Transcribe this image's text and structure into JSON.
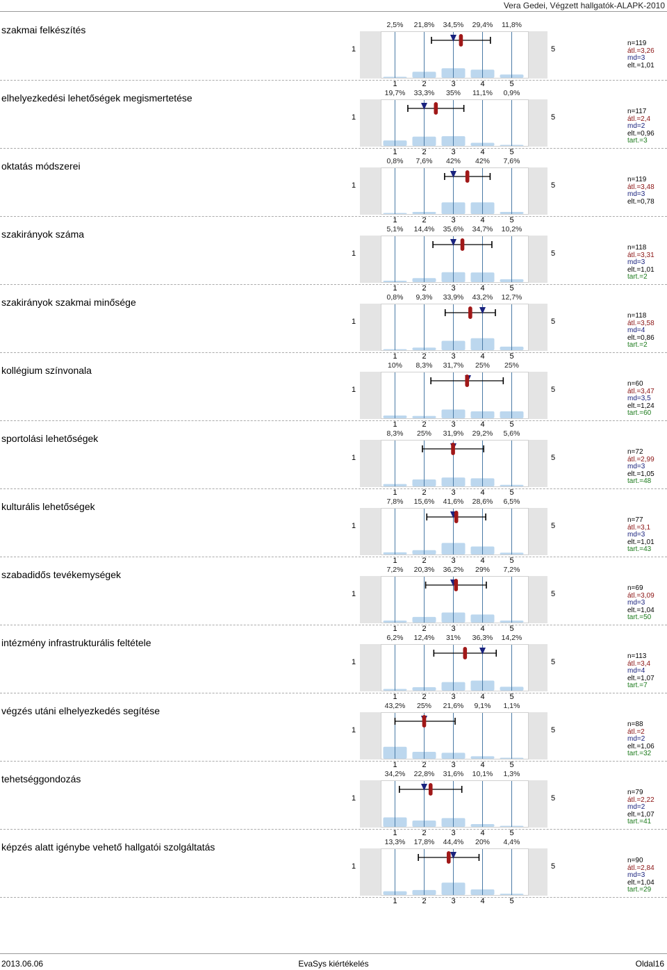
{
  "header": {
    "title": "Vera Gedei, Végzett hallgatók-ALAPK-2010"
  },
  "scale": {
    "low": "1",
    "high": "5",
    "ticks": [
      "1",
      "2",
      "3",
      "4",
      "5"
    ]
  },
  "footer": {
    "date": "2013.06.06",
    "center": "EvaSys kiértékelés",
    "page": "Oldal16"
  },
  "colors": {
    "bar": "#bcd7ee",
    "avg": "#a01818",
    "median": "#1a237e",
    "grid": "#4a7aa5",
    "sidebox": "#e4e4e4"
  },
  "chart_data": [
    {
      "type": "bar",
      "title": "szakmai felkészítés",
      "categories": [
        "1",
        "2",
        "3",
        "4",
        "5"
      ],
      "values": [
        2.5,
        21.8,
        34.5,
        29.4,
        11.8
      ],
      "labels": [
        "2,5%",
        "21,8%",
        "34,5%",
        "29,4%",
        "11,8%"
      ],
      "mean": 3.26,
      "median": 3,
      "sd": 1.01,
      "stats": {
        "n": "n=119",
        "avg": "átl.=3,26",
        "md": "md=3",
        "dev": "elt.=1,01",
        "abst": ""
      }
    },
    {
      "type": "bar",
      "title": "elhelyezkedési lehetőségek megismertetése",
      "categories": [
        "1",
        "2",
        "3",
        "4",
        "5"
      ],
      "values": [
        19.7,
        33.3,
        35,
        11.1,
        0.9
      ],
      "labels": [
        "19,7%",
        "33,3%",
        "35%",
        "11,1%",
        "0,9%"
      ],
      "mean": 2.4,
      "median": 2,
      "sd": 0.96,
      "stats": {
        "n": "n=117",
        "avg": "átl.=2,4",
        "md": "md=2",
        "dev": "elt.=0,96",
        "abst": "tart.=3"
      }
    },
    {
      "type": "bar",
      "title": "oktatás módszerei",
      "categories": [
        "1",
        "2",
        "3",
        "4",
        "5"
      ],
      "values": [
        0.8,
        7.6,
        42,
        42,
        7.6
      ],
      "labels": [
        "0,8%",
        "7,6%",
        "42%",
        "42%",
        "7,6%"
      ],
      "mean": 3.48,
      "median": 3,
      "sd": 0.78,
      "stats": {
        "n": "n=119",
        "avg": "átl.=3,48",
        "md": "md=3",
        "dev": "elt.=0,78",
        "abst": ""
      }
    },
    {
      "type": "bar",
      "title": "szakirányok száma",
      "categories": [
        "1",
        "2",
        "3",
        "4",
        "5"
      ],
      "values": [
        5.1,
        14.4,
        35.6,
        34.7,
        10.2
      ],
      "labels": [
        "5,1%",
        "14,4%",
        "35,6%",
        "34,7%",
        "10,2%"
      ],
      "mean": 3.31,
      "median": 3,
      "sd": 1.01,
      "stats": {
        "n": "n=118",
        "avg": "átl.=3,31",
        "md": "md=3",
        "dev": "elt.=1,01",
        "abst": "tart.=2"
      }
    },
    {
      "type": "bar",
      "title": "szakirányok szakmai minősége",
      "categories": [
        "1",
        "2",
        "3",
        "4",
        "5"
      ],
      "values": [
        0.8,
        9.3,
        33.9,
        43.2,
        12.7
      ],
      "labels": [
        "0,8%",
        "9,3%",
        "33,9%",
        "43,2%",
        "12,7%"
      ],
      "mean": 3.58,
      "median": 4,
      "sd": 0.86,
      "stats": {
        "n": "n=118",
        "avg": "átl.=3,58",
        "md": "md=4",
        "dev": "elt.=0,86",
        "abst": "tart.=2"
      }
    },
    {
      "type": "bar",
      "title": "kollégium színvonala",
      "categories": [
        "1",
        "2",
        "3",
        "4",
        "5"
      ],
      "values": [
        10,
        8.3,
        31.7,
        25,
        25
      ],
      "labels": [
        "10%",
        "8,3%",
        "31,7%",
        "25%",
        "25%"
      ],
      "mean": 3.47,
      "median": 3.5,
      "sd": 1.24,
      "stats": {
        "n": "n=60",
        "avg": "átl.=3,47",
        "md": "md=3,5",
        "dev": "elt.=1,24",
        "abst": "tart.=60"
      }
    },
    {
      "type": "bar",
      "title": "sportolási lehetőségek",
      "categories": [
        "1",
        "2",
        "3",
        "4",
        "5"
      ],
      "values": [
        8.3,
        25,
        31.9,
        29.2,
        5.6
      ],
      "labels": [
        "8,3%",
        "25%",
        "31,9%",
        "29,2%",
        "5,6%"
      ],
      "mean": 2.99,
      "median": 3,
      "sd": 1.05,
      "stats": {
        "n": "n=72",
        "avg": "átl.=2,99",
        "md": "md=3",
        "dev": "elt.=1,05",
        "abst": "tart.=48"
      }
    },
    {
      "type": "bar",
      "title": "kulturális lehetőségek",
      "categories": [
        "1",
        "2",
        "3",
        "4",
        "5"
      ],
      "values": [
        7.8,
        15.6,
        41.6,
        28.6,
        6.5
      ],
      "labels": [
        "7,8%",
        "15,6%",
        "41,6%",
        "28,6%",
        "6,5%"
      ],
      "mean": 3.1,
      "median": 3,
      "sd": 1.01,
      "stats": {
        "n": "n=77",
        "avg": "átl.=3,1",
        "md": "md=3",
        "dev": "elt.=1,01",
        "abst": "tart.=43"
      }
    },
    {
      "type": "bar",
      "title": "szabadidős tevékemységek",
      "categories": [
        "1",
        "2",
        "3",
        "4",
        "5"
      ],
      "values": [
        7.2,
        20.3,
        36.2,
        29,
        7.2
      ],
      "labels": [
        "7,2%",
        "20,3%",
        "36,2%",
        "29%",
        "7,2%"
      ],
      "mean": 3.09,
      "median": 3,
      "sd": 1.04,
      "stats": {
        "n": "n=69",
        "avg": "átl.=3,09",
        "md": "md=3",
        "dev": "elt.=1,04",
        "abst": "tart.=50"
      }
    },
    {
      "type": "bar",
      "title": "intézmény infrastrukturális feltétele",
      "categories": [
        "1",
        "2",
        "3",
        "4",
        "5"
      ],
      "values": [
        6.2,
        12.4,
        31,
        36.3,
        14.2
      ],
      "labels": [
        "6,2%",
        "12,4%",
        "31%",
        "36,3%",
        "14,2%"
      ],
      "mean": 3.4,
      "median": 4,
      "sd": 1.07,
      "stats": {
        "n": "n=113",
        "avg": "átl.=3,4",
        "md": "md=4",
        "dev": "elt.=1,07",
        "abst": "tart.=7"
      }
    },
    {
      "type": "bar",
      "title": "végzés utáni elhelyezkedés segítése",
      "categories": [
        "1",
        "2",
        "3",
        "4",
        "5"
      ],
      "values": [
        43.2,
        25,
        21.6,
        9.1,
        1.1
      ],
      "labels": [
        "43,2%",
        "25%",
        "21,6%",
        "9,1%",
        "1,1%"
      ],
      "mean": 2,
      "median": 2,
      "sd": 1.06,
      "stats": {
        "n": "n=88",
        "avg": "átl.=2",
        "md": "md=2",
        "dev": "elt.=1,06",
        "abst": "tart.=32"
      }
    },
    {
      "type": "bar",
      "title": "tehetséggondozás",
      "categories": [
        "1",
        "2",
        "3",
        "4",
        "5"
      ],
      "values": [
        34.2,
        22.8,
        31.6,
        10.1,
        1.3
      ],
      "labels": [
        "34,2%",
        "22,8%",
        "31,6%",
        "10,1%",
        "1,3%"
      ],
      "mean": 2.22,
      "median": 2,
      "sd": 1.07,
      "stats": {
        "n": "n=79",
        "avg": "átl.=2,22",
        "md": "md=2",
        "dev": "elt.=1,07",
        "abst": "tart.=41"
      }
    },
    {
      "type": "bar",
      "title": "képzés alatt igénybe vehető hallgatói szolgáltatás",
      "categories": [
        "1",
        "2",
        "3",
        "4",
        "5"
      ],
      "values": [
        13.3,
        17.8,
        44.4,
        20,
        4.4
      ],
      "labels": [
        "13,3%",
        "17,8%",
        "44,4%",
        "20%",
        "4,4%"
      ],
      "mean": 2.84,
      "median": 3,
      "sd": 1.04,
      "stats": {
        "n": "n=90",
        "avg": "átl.=2,84",
        "md": "md=3",
        "dev": "elt.=1,04",
        "abst": "tart.=29"
      }
    }
  ]
}
